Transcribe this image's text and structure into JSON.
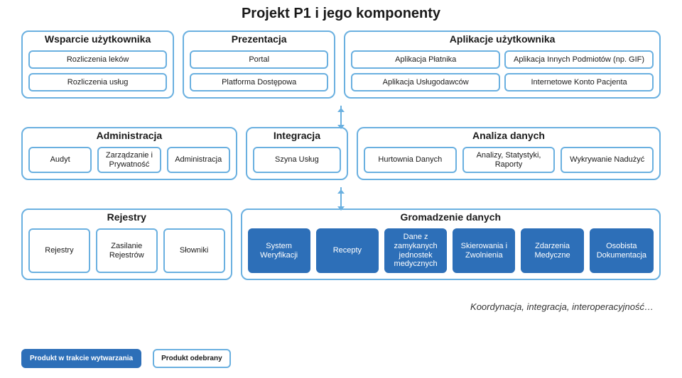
{
  "title": "Projekt P1 i jego komponenty",
  "rows": [
    {
      "groups": [
        {
          "title": "Wsparcie użytkownika",
          "layout": "col2",
          "width": 0.22,
          "cards": [
            {
              "label": "Rozliczenia leków",
              "filled": false
            },
            {
              "label": "Rozliczenia usług",
              "filled": false
            }
          ]
        },
        {
          "title": "Prezentacja",
          "layout": "col2",
          "width": 0.22,
          "cards": [
            {
              "label": "Portal",
              "filled": false
            },
            {
              "label": "Platforma Dostępowa",
              "filled": false
            }
          ]
        },
        {
          "title": "Aplikacje użytkownika",
          "layout": "grid2x2",
          "width": 0.48,
          "cards": [
            {
              "label": "Aplikacja Płatnika",
              "filled": false
            },
            {
              "label": "Aplikacja Innych Podmiotów (np. GIF)",
              "filled": false
            },
            {
              "label": "Aplikacja Usługodawców",
              "filled": false
            },
            {
              "label": "Internetowe Konto Pacjenta",
              "filled": false
            }
          ]
        }
      ],
      "connector_after": false
    },
    {
      "groups": [
        {
          "title": "Administracja",
          "layout": "row",
          "width": 0.32,
          "cards": [
            {
              "label": "Audyt",
              "filled": false
            },
            {
              "label": "Zarządzanie i Prywatność",
              "filled": false
            },
            {
              "label": "Administracja",
              "filled": false
            }
          ]
        },
        {
          "title": "Integracja",
          "layout": "row",
          "width": 0.14,
          "cards": [
            {
              "label": "Szyna Usług",
              "filled": false
            }
          ]
        },
        {
          "title": "Analiza danych",
          "layout": "row",
          "width": 0.46,
          "cards": [
            {
              "label": "Hurtownia Danych",
              "filled": false
            },
            {
              "label": "Analizy, Statystyki, Raporty",
              "filled": false
            },
            {
              "label": "Wykrywanie Nadużyć",
              "filled": false
            }
          ]
        }
      ],
      "connector_after": true,
      "connector_before": true
    },
    {
      "groups": [
        {
          "title": "Rejestry",
          "layout": "row",
          "width": 0.3,
          "cards": [
            {
              "label": "Rejestry",
              "filled": false
            },
            {
              "label": "Zasilanie Rejestrów",
              "filled": false
            },
            {
              "label": "Słowniki",
              "filled": false
            }
          ]
        },
        {
          "title": "Gromadzenie danych",
          "layout": "row",
          "width": 0.62,
          "cards": [
            {
              "label": "System Weryfikacji",
              "filled": true
            },
            {
              "label": "Recepty",
              "filled": true
            },
            {
              "label": "Dane z zamykanych jednostek medycznych",
              "filled": true
            },
            {
              "label": "Skierowania i Zwolnienia",
              "filled": true
            },
            {
              "label": "Zdarzenia Medyczne",
              "filled": true
            },
            {
              "label": "Osobista Dokumentacja",
              "filled": true
            }
          ]
        }
      ],
      "connector_after": false
    }
  ],
  "subtitle": "Koordynacja, integracja, interoperacyjność…",
  "legend": [
    {
      "label": "Produkt w trakcie wytwarzania",
      "filled": true
    },
    {
      "label": "Produkt odebrany",
      "filled": false
    }
  ],
  "colors": {
    "border": "#6ab0e0",
    "fill": "#2d6fb8",
    "text": "#1a1a1a",
    "bg": "#ffffff"
  }
}
